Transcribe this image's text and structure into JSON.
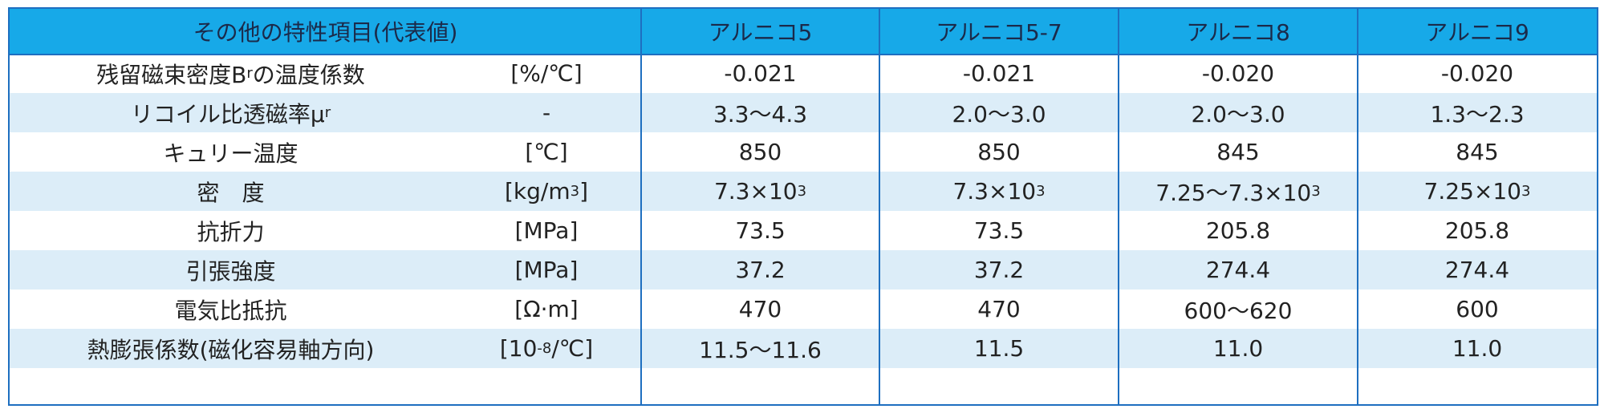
{
  "table": {
    "header": [
      "その他の特性項目(代表値)",
      "アルニコ5",
      "アルニコ5-7",
      "アルニコ8",
      "アルニコ9"
    ],
    "rows": [
      {
        "label": [
          "残留磁束密度B",
          {
            "sub": "r"
          },
          "の温度係数"
        ],
        "unit": [
          "[%/℃]"
        ],
        "values": [
          [
            "-0.021"
          ],
          [
            "-0.021"
          ],
          [
            "-0.020"
          ],
          [
            "-0.020"
          ]
        ]
      },
      {
        "label": [
          "リコイル比透磁率μ",
          {
            "sub": "r"
          }
        ],
        "unit": [
          "-"
        ],
        "values": [
          [
            "3.3～4.3"
          ],
          [
            "2.0～3.0"
          ],
          [
            "2.0～3.0"
          ],
          [
            "1.3～2.3"
          ]
        ]
      },
      {
        "label": [
          "キュリー温度"
        ],
        "unit": [
          "[℃]"
        ],
        "values": [
          [
            "850"
          ],
          [
            "850"
          ],
          [
            "845"
          ],
          [
            "845"
          ]
        ]
      },
      {
        "label": [
          "密　度"
        ],
        "unit": [
          "[kg/m",
          {
            "sup": "3"
          },
          "]"
        ],
        "values": [
          [
            "7.3×10",
            {
              "sup": "3"
            }
          ],
          [
            "7.3×10",
            {
              "sup": "3"
            }
          ],
          [
            "7.25～7.3×10",
            {
              "sup": "3"
            }
          ],
          [
            "7.25×10",
            {
              "sup": "3"
            }
          ]
        ]
      },
      {
        "label": [
          "抗折力"
        ],
        "unit": [
          "[MPa]"
        ],
        "values": [
          [
            "73.5"
          ],
          [
            "73.5"
          ],
          [
            "205.8"
          ],
          [
            "205.8"
          ]
        ]
      },
      {
        "label": [
          "引張強度"
        ],
        "unit": [
          "[MPa]"
        ],
        "values": [
          [
            "37.2"
          ],
          [
            "37.2"
          ],
          [
            "274.4"
          ],
          [
            "274.4"
          ]
        ]
      },
      {
        "label": [
          "電気比抵抗"
        ],
        "unit": [
          "[Ω·m]"
        ],
        "values": [
          [
            "470"
          ],
          [
            "470"
          ],
          [
            "600～620"
          ],
          [
            "600"
          ]
        ]
      },
      {
        "label": [
          "熱膨張係数(磁化容易軸方向)"
        ],
        "unit": [
          "[10",
          {
            "sup": "-8"
          },
          "/℃]"
        ],
        "values": [
          [
            "11.5～11.6"
          ],
          [
            "11.5"
          ],
          [
            "11.0"
          ],
          [
            "11.0"
          ]
        ]
      }
    ]
  }
}
